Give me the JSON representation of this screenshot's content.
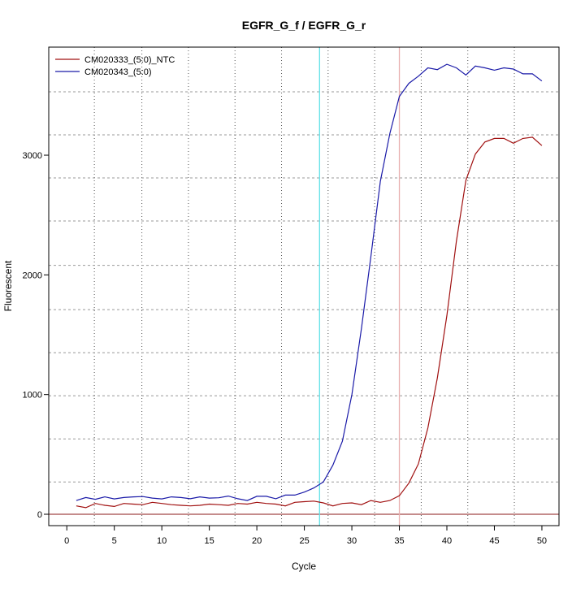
{
  "chart_data": {
    "type": "line",
    "title": "EGFR_G_f / EGFR_G_r",
    "xlabel": "Cycle",
    "ylabel": "Fluorescent",
    "xlim": [
      -1.9,
      51.8
    ],
    "ylim": [
      -95,
      3903
    ],
    "xticks": [
      0,
      5,
      10,
      15,
      20,
      25,
      30,
      35,
      40,
      45,
      50
    ],
    "yticks": [
      0,
      1000,
      2000,
      3000
    ],
    "vgrid": [
      2.9,
      7.9,
      12.8,
      17.7,
      22.6,
      27.5,
      32.4,
      37.3,
      42.2,
      47.1
    ],
    "hgrid": [
      270,
      630,
      990,
      1350,
      1710,
      2080,
      2450,
      2810,
      3170,
      3530
    ],
    "reference_lines": {
      "threshold_y": 0,
      "threshold_color": "#8b1a1a",
      "cycle_lines": [
        {
          "x": 26.6,
          "color": "#5fe0e8"
        },
        {
          "x": 35,
          "color": "#e8b0b0"
        }
      ]
    },
    "legend_position": "top-left",
    "x": [
      1,
      2,
      3,
      4,
      5,
      6,
      7,
      8,
      9,
      10,
      11,
      12,
      13,
      14,
      15,
      16,
      17,
      18,
      19,
      20,
      21,
      22,
      23,
      24,
      25,
      26,
      27,
      28,
      29,
      30,
      31,
      32,
      33,
      34,
      35,
      36,
      37,
      38,
      39,
      40,
      41,
      42,
      43,
      44,
      45,
      46,
      47,
      48,
      49,
      50
    ],
    "series": [
      {
        "name": "CM020333_(5:0)_NTC",
        "color": "#a01010",
        "values": [
          70,
          55,
          90,
          75,
          65,
          90,
          85,
          80,
          100,
          90,
          80,
          75,
          70,
          75,
          85,
          80,
          75,
          90,
          85,
          100,
          90,
          85,
          70,
          100,
          105,
          110,
          95,
          70,
          90,
          95,
          80,
          115,
          100,
          115,
          155,
          260,
          420,
          720,
          1140,
          1660,
          2280,
          2790,
          3010,
          3110,
          3140,
          3140,
          3100,
          3140,
          3150,
          3080
        ]
      },
      {
        "name": "CM020343_(5:0)",
        "color": "#1a1aa8",
        "values": [
          115,
          140,
          125,
          145,
          128,
          140,
          145,
          148,
          135,
          128,
          145,
          140,
          130,
          145,
          135,
          138,
          152,
          130,
          115,
          150,
          150,
          130,
          160,
          160,
          185,
          220,
          270,
          410,
          610,
          1000,
          1550,
          2150,
          2780,
          3180,
          3490,
          3600,
          3660,
          3730,
          3715,
          3760,
          3730,
          3670,
          3745,
          3730,
          3710,
          3730,
          3720,
          3680,
          3680,
          3620
        ]
      }
    ]
  }
}
